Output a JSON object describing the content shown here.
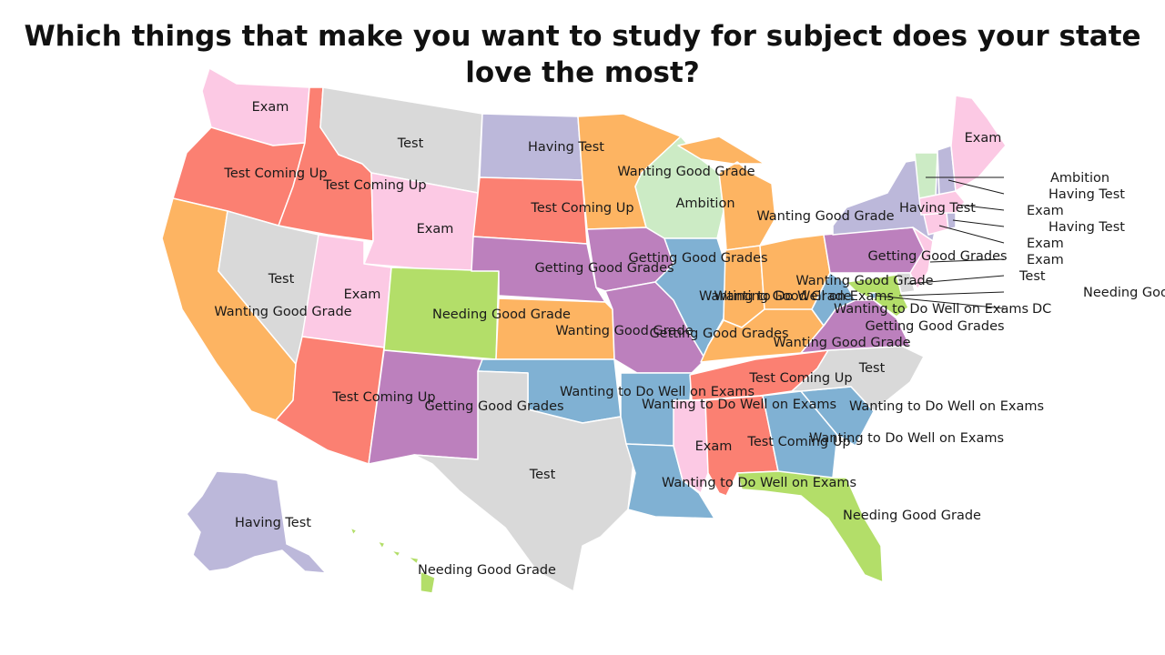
{
  "title": "Which things that make you want to study for subject does your state love the most?",
  "categories": {
    "test": {
      "name": "Test",
      "color": "#d9d9d9"
    },
    "exam": {
      "name": "Exam",
      "color": "#fcc9e4"
    },
    "having": {
      "name": "Having Test",
      "color": "#bcb8da"
    },
    "tcu": {
      "name": "Test Coming Up",
      "color": "#fb8072"
    },
    "wgg": {
      "name": "Wanting Good Grade",
      "color": "#fdb462"
    },
    "ambition": {
      "name": "Ambition",
      "color": "#ccebc5"
    },
    "ggg": {
      "name": "Getting Good Grades",
      "color": "#bc80bd"
    },
    "ngg": {
      "name": "Needing Good Grade",
      "color": "#b3de69"
    },
    "wdw": {
      "name": "Wanting to Do Well on Exams",
      "color": "#80b1d3"
    }
  },
  "states": [
    {
      "code": "WA",
      "label": "Exam",
      "cat": "exam"
    },
    {
      "code": "OR",
      "label": "Test Coming Up",
      "cat": "tcu"
    },
    {
      "code": "CA",
      "label": "Wanting Good Grade",
      "cat": "wgg"
    },
    {
      "code": "ID",
      "label": "Test Coming Up",
      "cat": "tcu"
    },
    {
      "code": "NV",
      "label": "Test",
      "cat": "test"
    },
    {
      "code": "MT",
      "label": "Test",
      "cat": "test"
    },
    {
      "code": "WY",
      "label": "Exam",
      "cat": "exam"
    },
    {
      "code": "UT",
      "label": "Exam",
      "cat": "exam"
    },
    {
      "code": "AZ",
      "label": "Test Coming Up",
      "cat": "tcu"
    },
    {
      "code": "CO",
      "label": "Needing Good Grade",
      "cat": "ngg"
    },
    {
      "code": "NM",
      "label": "Getting Good Grades",
      "cat": "ggg"
    },
    {
      "code": "ND",
      "label": "Having Test",
      "cat": "having"
    },
    {
      "code": "SD",
      "label": "Test Coming Up",
      "cat": "tcu"
    },
    {
      "code": "NE",
      "label": "Getting Good Grades",
      "cat": "ggg"
    },
    {
      "code": "KS",
      "label": "Wanting Good Grade",
      "cat": "wgg"
    },
    {
      "code": "OK",
      "label": "Wanting to Do Well on Exams",
      "cat": "wdw"
    },
    {
      "code": "TX",
      "label": "Test",
      "cat": "test"
    },
    {
      "code": "MN",
      "label": "Wanting Good Grade",
      "cat": "wgg"
    },
    {
      "code": "IA",
      "label": "Getting Good Grades",
      "cat": "ggg"
    },
    {
      "code": "MO",
      "label": "Getting Good Grades",
      "cat": "ggg"
    },
    {
      "code": "AR",
      "label": "Wanting to Do Well on Exams",
      "cat": "wdw"
    },
    {
      "code": "LA",
      "label": "Wanting to Do Well on Exams",
      "cat": "wdw"
    },
    {
      "code": "WI",
      "label": "Ambition",
      "cat": "ambition"
    },
    {
      "code": "IL",
      "label": "Wanting to Do Well on Exams",
      "cat": "wdw"
    },
    {
      "code": "MI",
      "label": "Wanting Good Grade",
      "cat": "wgg"
    },
    {
      "code": "IN",
      "label": "Wanting Good Grade",
      "cat": "wgg"
    },
    {
      "code": "OH",
      "label": "Wanting Good Grade",
      "cat": "wgg"
    },
    {
      "code": "KY",
      "label": "Wanting Good Grade",
      "cat": "wgg"
    },
    {
      "code": "TN",
      "label": "Test Coming Up",
      "cat": "tcu"
    },
    {
      "code": "MS",
      "label": "Exam",
      "cat": "exam"
    },
    {
      "code": "AL",
      "label": "Test Coming Up",
      "cat": "tcu"
    },
    {
      "code": "GA",
      "label": "Wanting to Do Well on Exams",
      "cat": "wdw"
    },
    {
      "code": "FL",
      "label": "Needing Good Grade",
      "cat": "ngg"
    },
    {
      "code": "SC",
      "label": "Wanting to Do Well on Exams",
      "cat": "wdw"
    },
    {
      "code": "NC",
      "label": "Test",
      "cat": "test"
    },
    {
      "code": "VA",
      "label": "Getting Good Grades",
      "cat": "ggg"
    },
    {
      "code": "WV",
      "label": "Wanting to Do Well on Exams",
      "cat": "wdw"
    },
    {
      "code": "PA",
      "label": "Getting Good Grades",
      "cat": "ggg"
    },
    {
      "code": "NY",
      "label": "Having Test",
      "cat": "having"
    },
    {
      "code": "NJ",
      "label": "Exam",
      "cat": "exam"
    },
    {
      "code": "DE",
      "label": "Test",
      "cat": "test"
    },
    {
      "code": "MD",
      "label": "Needing Good Grade",
      "cat": "ngg"
    },
    {
      "code": "DC",
      "label": "DC",
      "cat": "wdw"
    },
    {
      "code": "VT",
      "label": "Ambition",
      "cat": "ambition"
    },
    {
      "code": "NH",
      "label": "Having Test",
      "cat": "having"
    },
    {
      "code": "MA",
      "label": "Exam",
      "cat": "exam"
    },
    {
      "code": "CT",
      "label": "Exam",
      "cat": "exam"
    },
    {
      "code": "RI",
      "label": "Having Test",
      "cat": "having"
    },
    {
      "code": "ME",
      "label": "Exam",
      "cat": "exam"
    },
    {
      "code": "AK",
      "label": "Having Test",
      "cat": "having"
    },
    {
      "code": "HI",
      "label": "Needing Good Grade",
      "cat": "ngg"
    }
  ]
}
